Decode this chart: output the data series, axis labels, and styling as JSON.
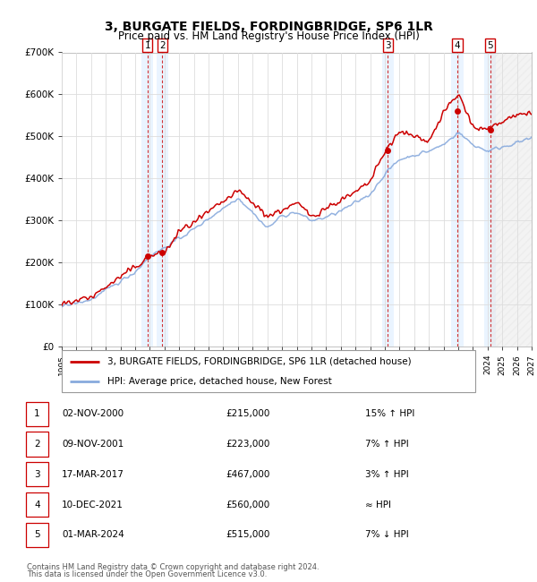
{
  "title": "3, BURGATE FIELDS, FORDINGBRIDGE, SP6 1LR",
  "subtitle": "Price paid vs. HM Land Registry's House Price Index (HPI)",
  "legend_line1": "3, BURGATE FIELDS, FORDINGBRIDGE, SP6 1LR (detached house)",
  "legend_line2": "HPI: Average price, detached house, New Forest",
  "footer1": "Contains HM Land Registry data © Crown copyright and database right 2024.",
  "footer2": "This data is licensed under the Open Government Licence v3.0.",
  "price_color": "#cc0000",
  "hpi_color": "#88aadd",
  "sale_marker_color": "#cc0000",
  "vline_color": "#cc0000",
  "shade_color": "#ddeeff",
  "bg_color": "#ffffff",
  "grid_color": "#dddddd",
  "ylim": [
    0,
    700000
  ],
  "yticks": [
    0,
    100000,
    200000,
    300000,
    400000,
    500000,
    600000,
    700000
  ],
  "ylabels": [
    "£0",
    "£100K",
    "£200K",
    "£300K",
    "£400K",
    "£500K",
    "£600K",
    "£700K"
  ],
  "sales": [
    {
      "num": 1,
      "date_x": 2000.84,
      "price": 215000,
      "date_str": "02-NOV-2000",
      "price_str": "£215,000",
      "rel": "15% ↑ HPI"
    },
    {
      "num": 2,
      "date_x": 2001.85,
      "price": 223000,
      "date_str": "09-NOV-2001",
      "price_str": "£223,000",
      "rel": "7% ↑ HPI"
    },
    {
      "num": 3,
      "date_x": 2017.2,
      "price": 467000,
      "date_str": "17-MAR-2017",
      "price_str": "£467,000",
      "rel": "3% ↑ HPI"
    },
    {
      "num": 4,
      "date_x": 2021.94,
      "price": 560000,
      "date_str": "10-DEC-2021",
      "price_str": "£560,000",
      "rel": "≈ HPI"
    },
    {
      "num": 5,
      "date_x": 2024.17,
      "price": 515000,
      "date_str": "01-MAR-2024",
      "price_str": "£515,000",
      "rel": "7% ↓ HPI"
    }
  ],
  "xmin": 1995.0,
  "xmax": 2027.0
}
